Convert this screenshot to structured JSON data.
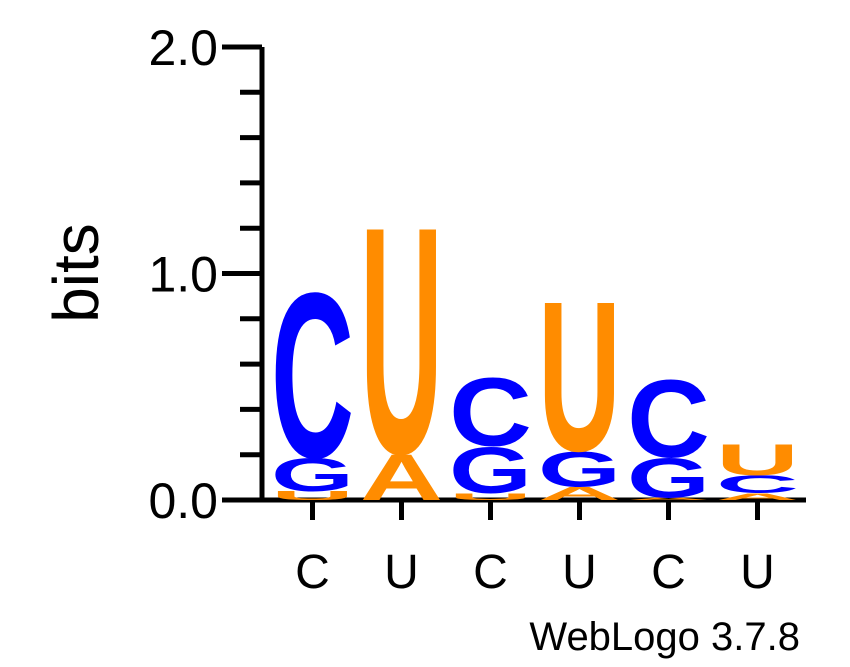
{
  "chart_data": {
    "type": "sequence-logo",
    "ylabel": "bits",
    "ylim": [
      0,
      2.0
    ],
    "yticks": [
      "0.0",
      "1.0",
      "2.0"
    ],
    "grid": false,
    "footer": "WebLogo 3.7.8",
    "positions": [
      {
        "label": "C",
        "stack": [
          {
            "letter": "U",
            "bits": 0.04
          },
          {
            "letter": "G",
            "bits": 0.15
          },
          {
            "letter": "C",
            "bits": 0.75
          }
        ]
      },
      {
        "label": "U",
        "stack": [
          {
            "letter": "A",
            "bits": 0.21
          },
          {
            "letter": "U",
            "bits": 1.03
          }
        ]
      },
      {
        "label": "C",
        "stack": [
          {
            "letter": "U",
            "bits": 0.03
          },
          {
            "letter": "G",
            "bits": 0.21
          },
          {
            "letter": "C",
            "bits": 0.31
          }
        ]
      },
      {
        "label": "U",
        "stack": [
          {
            "letter": "A",
            "bits": 0.06
          },
          {
            "letter": "G",
            "bits": 0.16
          },
          {
            "letter": "U",
            "bits": 0.68
          }
        ]
      },
      {
        "label": "C",
        "stack": [
          {
            "letter": "A",
            "bits": 0.01
          },
          {
            "letter": "G",
            "bits": 0.18
          },
          {
            "letter": "C",
            "bits": 0.35
          }
        ]
      },
      {
        "label": "U",
        "stack": [
          {
            "letter": "A",
            "bits": 0.03
          },
          {
            "letter": "C",
            "bits": 0.08
          },
          {
            "letter": "U",
            "bits": 0.14
          }
        ]
      }
    ],
    "colors": {
      "C": "#0000ff",
      "G": "#0000ff",
      "U": "#ff8c00",
      "A": "#ff8c00"
    }
  }
}
